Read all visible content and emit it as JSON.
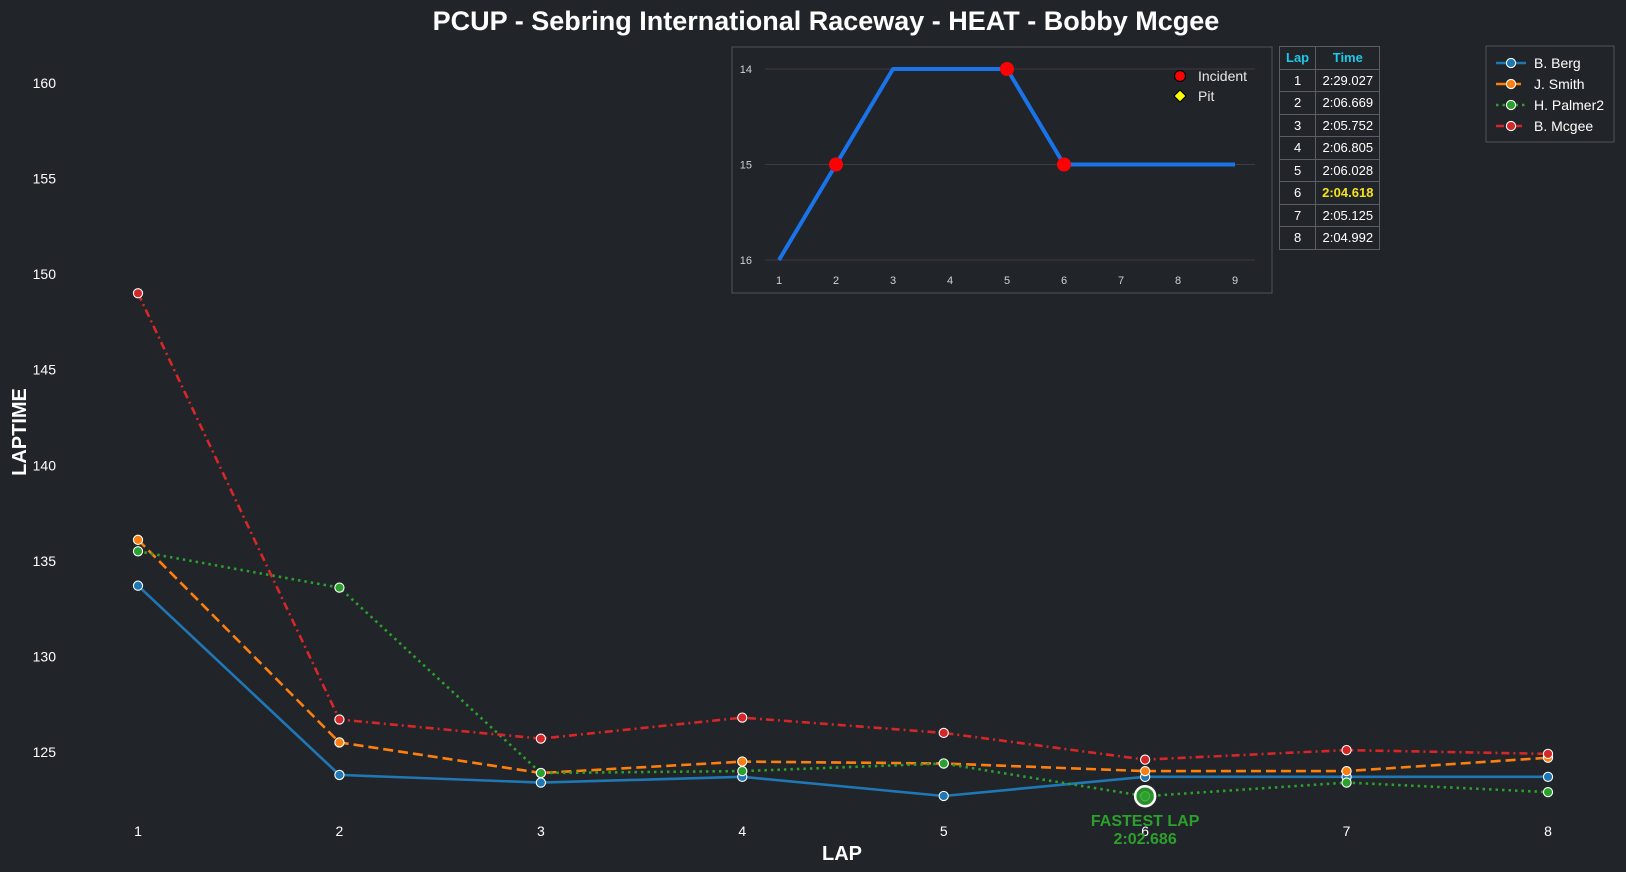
{
  "title": "PCUP - Sebring International Raceway - HEAT - Bobby Mcgee",
  "chart_data": [
    {
      "type": "line",
      "xlabel": "LAP",
      "ylabel": "LAPTIME",
      "x": [
        1,
        2,
        3,
        4,
        5,
        6,
        7,
        8
      ],
      "xlim": [
        0.35,
        8.5
      ],
      "ylim": [
        121,
        162
      ],
      "yticks": [
        125,
        130,
        135,
        140,
        145,
        150,
        155,
        160
      ],
      "legend_position": "top-right",
      "series": [
        {
          "name": "B. Berg",
          "color": "#1f77b4",
          "style": "solid",
          "values": [
            133.7,
            123.8,
            123.4,
            123.7,
            122.7,
            123.7,
            123.7,
            123.7
          ]
        },
        {
          "name": "J. Smith",
          "color": "#ff7f0e",
          "style": "dashed",
          "values": [
            136.1,
            125.5,
            123.9,
            124.5,
            124.4,
            124.0,
            124.0,
            124.7
          ]
        },
        {
          "name": "H. Palmer2",
          "color": "#2ca02c",
          "style": "dotted",
          "values": [
            135.5,
            133.6,
            123.9,
            124.0,
            124.4,
            122.686,
            123.4,
            122.9
          ]
        },
        {
          "name": "B. Mcgee",
          "color": "#d62728",
          "style": "dashdot",
          "values": [
            149.0,
            126.7,
            125.7,
            126.8,
            126.0,
            124.6,
            125.1,
            124.9
          ]
        }
      ],
      "annotation": {
        "label": "FASTEST LAP",
        "value": "2:02.686",
        "x": 6,
        "y": 122.686,
        "color": "#2ca02c"
      }
    },
    {
      "type": "line",
      "x": [
        1,
        2,
        3,
        4,
        5,
        6,
        7,
        8,
        9
      ],
      "values": [
        16,
        15,
        14,
        14,
        14,
        15,
        15,
        15,
        15
      ],
      "ylim": [
        16.1,
        13.8
      ],
      "yticks": [
        14,
        15,
        16
      ],
      "y_inverted": true,
      "line_color": "#1a73e8",
      "incidents": [
        2,
        5,
        6
      ],
      "pits": [],
      "legend": [
        {
          "label": "Incident",
          "marker": "circle",
          "color": "#ff0000"
        },
        {
          "label": "Pit",
          "marker": "diamond",
          "color": "#ffff00"
        }
      ],
      "legend_position": "top-right"
    }
  ],
  "lap_table": {
    "headers": [
      "Lap",
      "Time"
    ],
    "rows": [
      [
        "1",
        "2:29.027"
      ],
      [
        "2",
        "2:06.669"
      ],
      [
        "3",
        "2:05.752"
      ],
      [
        "4",
        "2:06.805"
      ],
      [
        "5",
        "2:06.028"
      ],
      [
        "6",
        "2:04.618"
      ],
      [
        "7",
        "2:05.125"
      ],
      [
        "8",
        "2:04.992"
      ]
    ],
    "highlight_row": 5,
    "header_color": "#1ec8e8",
    "highlight_color": "#f5e21b"
  }
}
